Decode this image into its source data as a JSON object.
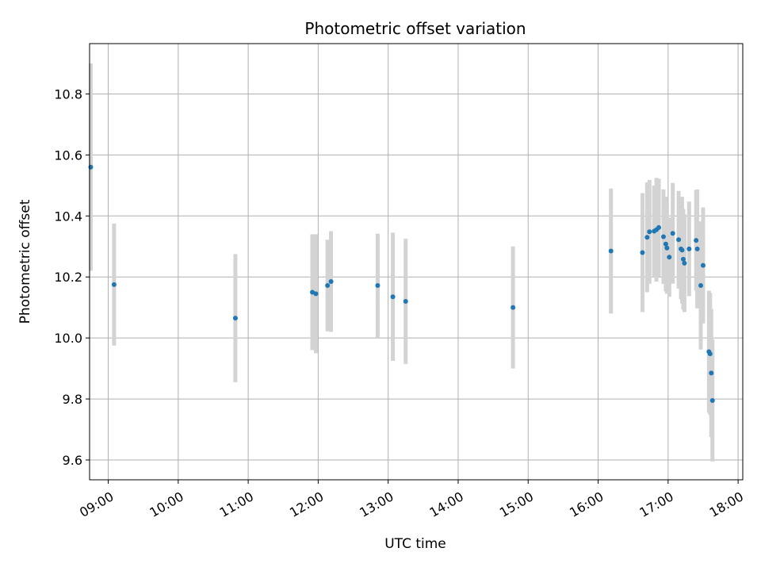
{
  "chart_data": {
    "type": "scatter",
    "title": "Photometric offset variation",
    "xlabel": "UTC time",
    "ylabel": "Photometric offset",
    "xlim": [
      "08:44",
      "18:04"
    ],
    "ylim": [
      9.535,
      10.965
    ],
    "x_ticks": [
      "09:00",
      "10:00",
      "11:00",
      "12:00",
      "13:00",
      "14:00",
      "15:00",
      "16:00",
      "17:00",
      "18:00"
    ],
    "y_ticks": [
      9.6,
      9.8,
      10.0,
      10.2,
      10.4,
      10.6,
      10.8
    ],
    "y_tick_labels": [
      "9.6",
      "9.8",
      "10.0",
      "10.2",
      "10.4",
      "10.6",
      "10.8"
    ],
    "grid": true,
    "colors": {
      "marker": "#1f77b4",
      "errorbar": "#d3d3d3",
      "grid": "#b0b0b0"
    },
    "points": [
      {
        "x": "08:45",
        "y": 10.56,
        "err": 0.34
      },
      {
        "x": "09:05",
        "y": 10.175,
        "err": 0.2
      },
      {
        "x": "10:49",
        "y": 10.065,
        "err": 0.21
      },
      {
        "x": "11:55",
        "y": 10.15,
        "err": 0.19
      },
      {
        "x": "11:58",
        "y": 10.145,
        "err": 0.195
      },
      {
        "x": "12:08",
        "y": 10.172,
        "err": 0.15
      },
      {
        "x": "12:11",
        "y": 10.185,
        "err": 0.165
      },
      {
        "x": "12:51",
        "y": 10.172,
        "err": 0.17
      },
      {
        "x": "13:04",
        "y": 10.135,
        "err": 0.21
      },
      {
        "x": "13:15",
        "y": 10.12,
        "err": 0.205
      },
      {
        "x": "14:47",
        "y": 10.1,
        "err": 0.2
      },
      {
        "x": "16:11",
        "y": 10.285,
        "err": 0.205
      },
      {
        "x": "16:38",
        "y": 10.28,
        "err": 0.195
      },
      {
        "x": "16:42",
        "y": 10.33,
        "err": 0.18
      },
      {
        "x": "16:44",
        "y": 10.348,
        "err": 0.17
      },
      {
        "x": "16:48",
        "y": 10.35,
        "err": 0.15
      },
      {
        "x": "16:50",
        "y": 10.355,
        "err": 0.17
      },
      {
        "x": "16:52",
        "y": 10.362,
        "err": 0.16
      },
      {
        "x": "16:56",
        "y": 10.332,
        "err": 0.155
      },
      {
        "x": "16:58",
        "y": 10.308,
        "err": 0.155
      },
      {
        "x": "16:59",
        "y": 10.295,
        "err": 0.15
      },
      {
        "x": "17:01",
        "y": 10.265,
        "err": 0.13
      },
      {
        "x": "17:04",
        "y": 10.343,
        "err": 0.165
      },
      {
        "x": "17:09",
        "y": 10.322,
        "err": 0.16
      },
      {
        "x": "17:11",
        "y": 10.292,
        "err": 0.165
      },
      {
        "x": "17:12",
        "y": 10.288,
        "err": 0.175
      },
      {
        "x": "17:13",
        "y": 10.258,
        "err": 0.165
      },
      {
        "x": "17:14",
        "y": 10.245,
        "err": 0.16
      },
      {
        "x": "17:18",
        "y": 10.292,
        "err": 0.155
      },
      {
        "x": "17:24",
        "y": 10.32,
        "err": 0.165
      },
      {
        "x": "17:25",
        "y": 10.292,
        "err": 0.195
      },
      {
        "x": "17:28",
        "y": 10.172,
        "err": 0.21
      },
      {
        "x": "17:30",
        "y": 10.238,
        "err": 0.19
      },
      {
        "x": "17:35",
        "y": 9.955,
        "err": 0.2
      },
      {
        "x": "17:36",
        "y": 9.948,
        "err": 0.2
      },
      {
        "x": "17:37",
        "y": 9.885,
        "err": 0.21
      },
      {
        "x": "17:38",
        "y": 9.795,
        "err": 0.2
      }
    ]
  }
}
